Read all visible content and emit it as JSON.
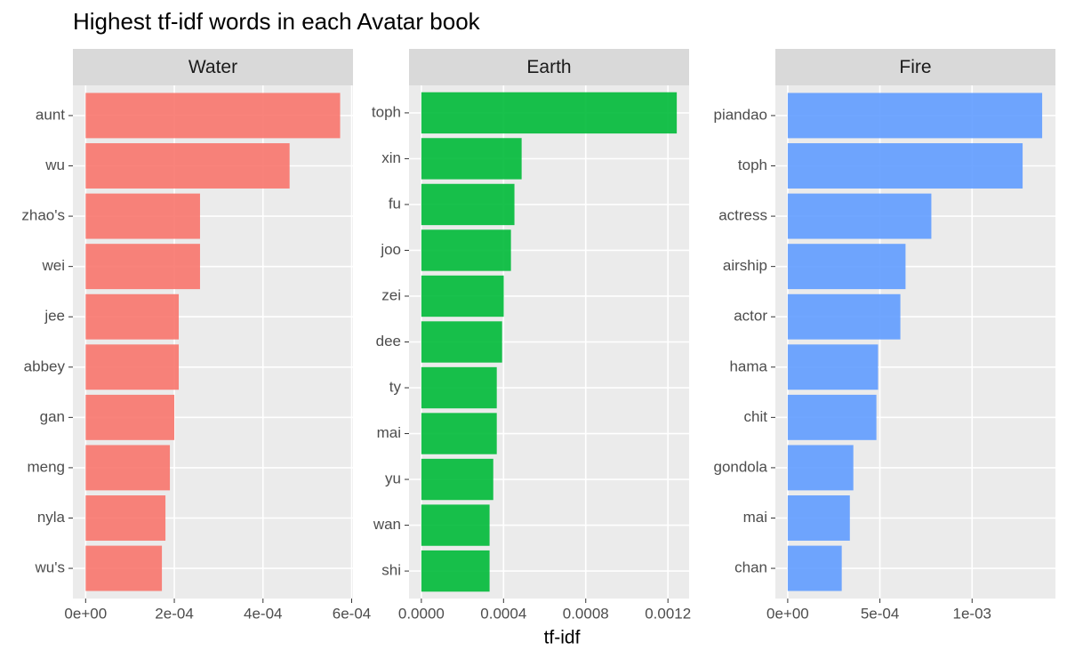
{
  "title": "Highest tf-idf words in each Avatar book",
  "xlabel": "tf-idf",
  "chart_data": [
    {
      "type": "bar",
      "orientation": "horizontal",
      "title": "Water",
      "color": "#F8766D",
      "categories": [
        "aunt",
        "wu",
        "zhao's",
        "wei",
        "jee",
        "abbey",
        "gan",
        "meng",
        "nyla",
        "wu's"
      ],
      "values": [
        0.000574,
        0.00046,
        0.000258,
        0.000258,
        0.00021,
        0.00021,
        0.0002,
        0.00019,
        0.00018,
        0.000172
      ],
      "xlim": [
        -2.87e-05,
        0.000603
      ],
      "xticks": [
        {
          "value": 0,
          "label": "0e+00"
        },
        {
          "value": 0.0002,
          "label": "2e-04"
        },
        {
          "value": 0.0004,
          "label": "4e-04"
        },
        {
          "value": 0.0006,
          "label": "6e-04"
        }
      ],
      "grid": true
    },
    {
      "type": "bar",
      "orientation": "horizontal",
      "title": "Earth",
      "color": "#00BA38",
      "categories": [
        "toph",
        "xin",
        "fu",
        "joo",
        "zei",
        "dee",
        "ty",
        "mai",
        "yu",
        "wan",
        "shi"
      ],
      "values": [
        0.001243,
        0.000488,
        0.000453,
        0.000436,
        0.000401,
        0.000393,
        0.000367,
        0.000367,
        0.00035,
        0.000332,
        0.000332
      ],
      "xlim": [
        -6e-05,
        0.001303
      ],
      "xticks": [
        {
          "value": 0,
          "label": "0.0000"
        },
        {
          "value": 0.0004,
          "label": "0.0004"
        },
        {
          "value": 0.0008,
          "label": "0.0008"
        },
        {
          "value": 0.0012,
          "label": "0.0012"
        }
      ],
      "grid": true
    },
    {
      "type": "bar",
      "orientation": "horizontal",
      "title": "Fire",
      "color": "#619CFF",
      "categories": [
        "piandao",
        "toph",
        "actress",
        "airship",
        "actor",
        "hama",
        "chit",
        "gondola",
        "mai",
        "chan"
      ],
      "values": [
        0.00138,
        0.001274,
        0.000779,
        0.000639,
        0.000611,
        0.00049,
        0.000481,
        0.000356,
        0.000337,
        0.000293
      ],
      "xlim": [
        -6.7e-05,
        0.001452
      ],
      "xticks": [
        {
          "value": 0,
          "label": "0e+00"
        },
        {
          "value": 0.0005,
          "label": "5e-04"
        },
        {
          "value": 0.001,
          "label": "1e-03"
        }
      ],
      "grid": true
    }
  ]
}
